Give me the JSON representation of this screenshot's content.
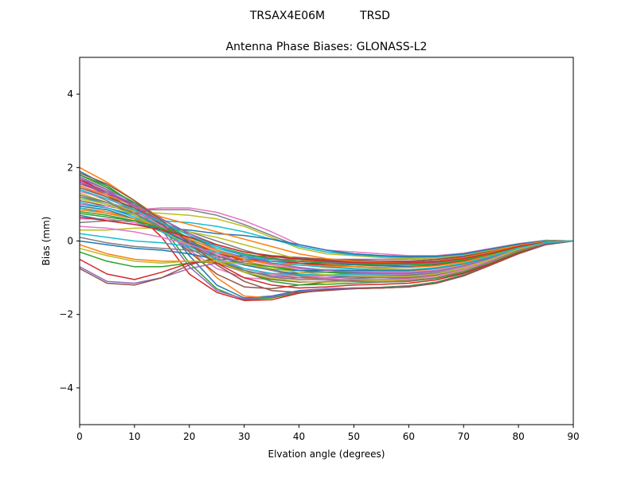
{
  "figure": {
    "suptitle_left": "TRSAX4E06M",
    "suptitle_right": "TRSD"
  },
  "chart_data": {
    "type": "line",
    "title": "Antenna Phase Biases: GLONASS-L2",
    "xlabel": "Elvation angle (degrees)",
    "ylabel": "Bias (mm)",
    "xlim": [
      0,
      90
    ],
    "ylim": [
      -5,
      5
    ],
    "x_ticks": [
      0,
      10,
      20,
      30,
      40,
      50,
      60,
      70,
      80,
      90
    ],
    "y_ticks": [
      -4,
      -2,
      0,
      2,
      4
    ],
    "grid": false,
    "legend": "none",
    "colors": [
      "#1f77b4",
      "#ff7f0e",
      "#2ca02c",
      "#d62728",
      "#9467bd",
      "#8c564b",
      "#e377c2",
      "#7f7f7f",
      "#bcbd22",
      "#17becf"
    ],
    "x": [
      0,
      5,
      10,
      15,
      20,
      25,
      30,
      35,
      40,
      45,
      50,
      55,
      60,
      65,
      70,
      75,
      80,
      85,
      90
    ],
    "series": [
      {
        "values": [
          1.9,
          1.5,
          1.0,
          0.5,
          -0.4,
          -1.2,
          -1.55,
          -1.5,
          -1.35,
          -1.3,
          -1.28,
          -1.28,
          -1.25,
          -1.15,
          -0.95,
          -0.65,
          -0.35,
          -0.1,
          0.0
        ]
      },
      {
        "values": [
          2.0,
          1.6,
          1.1,
          0.6,
          -0.2,
          -1.0,
          -1.5,
          -1.55,
          -1.4,
          -1.32,
          -1.3,
          -1.28,
          -1.25,
          -1.15,
          -0.95,
          -0.65,
          -0.35,
          -0.1,
          0.0
        ]
      },
      {
        "values": [
          1.8,
          1.5,
          1.0,
          0.4,
          -0.6,
          -1.3,
          -1.6,
          -1.55,
          -1.4,
          -1.3,
          -1.28,
          -1.26,
          -1.22,
          -1.12,
          -0.92,
          -0.62,
          -0.33,
          -0.1,
          0.0
        ]
      },
      {
        "values": [
          1.7,
          1.3,
          0.8,
          0.1,
          -0.9,
          -1.4,
          -1.62,
          -1.6,
          -1.42,
          -1.32,
          -1.3,
          -1.28,
          -1.25,
          -1.15,
          -0.95,
          -0.65,
          -0.35,
          -0.1,
          0.0
        ]
      },
      {
        "values": [
          1.75,
          1.4,
          0.9,
          0.3,
          -0.7,
          -1.35,
          -1.58,
          -1.52,
          -1.38,
          -1.3,
          -1.28,
          -1.27,
          -1.24,
          -1.14,
          -0.94,
          -0.64,
          -0.34,
          -0.1,
          0.0
        ]
      },
      {
        "values": [
          1.6,
          1.25,
          0.85,
          0.35,
          -0.3,
          -0.9,
          -1.25,
          -1.3,
          -1.2,
          -1.12,
          -1.1,
          -1.1,
          -1.08,
          -1.0,
          -0.85,
          -0.6,
          -0.3,
          -0.08,
          0.0
        ]
      },
      {
        "values": [
          1.5,
          1.2,
          0.8,
          0.3,
          -0.25,
          -0.75,
          -1.0,
          -1.05,
          -1.0,
          -0.95,
          -0.95,
          -0.95,
          -0.95,
          -0.9,
          -0.75,
          -0.5,
          -0.25,
          -0.05,
          0.0
        ]
      },
      {
        "values": [
          1.4,
          1.1,
          0.7,
          0.25,
          -0.2,
          -0.6,
          -0.85,
          -0.9,
          -0.85,
          -0.85,
          -0.85,
          -0.88,
          -0.88,
          -0.82,
          -0.7,
          -0.48,
          -0.22,
          -0.05,
          0.0
        ]
      },
      {
        "values": [
          1.3,
          1.05,
          0.75,
          0.35,
          0.0,
          -0.3,
          -0.5,
          -0.6,
          -0.65,
          -0.7,
          -0.75,
          -0.78,
          -0.78,
          -0.72,
          -0.6,
          -0.4,
          -0.18,
          -0.03,
          0.0
        ]
      },
      {
        "values": [
          1.2,
          1.0,
          0.75,
          0.4,
          0.1,
          -0.2,
          -0.4,
          -0.5,
          -0.55,
          -0.6,
          -0.62,
          -0.65,
          -0.65,
          -0.6,
          -0.5,
          -0.32,
          -0.14,
          -0.02,
          0.0
        ]
      },
      {
        "values": [
          1.0,
          0.9,
          0.7,
          0.35,
          0.05,
          -0.25,
          -0.45,
          -0.55,
          -0.6,
          -0.62,
          -0.65,
          -0.68,
          -0.7,
          -0.65,
          -0.55,
          -0.38,
          -0.18,
          -0.04,
          0.0
        ]
      },
      {
        "values": [
          0.9,
          0.8,
          0.6,
          0.3,
          0.0,
          -0.3,
          -0.55,
          -0.7,
          -0.75,
          -0.78,
          -0.8,
          -0.82,
          -0.82,
          -0.76,
          -0.64,
          -0.44,
          -0.2,
          -0.05,
          0.0
        ]
      },
      {
        "values": [
          0.8,
          0.7,
          0.55,
          0.25,
          -0.05,
          -0.35,
          -0.6,
          -0.75,
          -0.8,
          -0.85,
          -0.88,
          -0.9,
          -0.9,
          -0.83,
          -0.7,
          -0.48,
          -0.22,
          -0.05,
          0.0
        ]
      },
      {
        "values": [
          1.6,
          1.3,
          1.0,
          0.5,
          0.0,
          -0.35,
          -0.5,
          -0.55,
          -0.55,
          -0.55,
          -0.55,
          -0.55,
          -0.55,
          -0.5,
          -0.42,
          -0.3,
          -0.14,
          -0.03,
          0.0
        ]
      },
      {
        "values": [
          1.7,
          1.4,
          1.05,
          0.6,
          0.15,
          -0.25,
          -0.45,
          -0.5,
          -0.5,
          -0.5,
          -0.5,
          -0.5,
          -0.5,
          -0.46,
          -0.4,
          -0.28,
          -0.12,
          -0.02,
          0.0
        ]
      },
      {
        "values": [
          1.1,
          0.95,
          0.8,
          0.5,
          0.2,
          -0.1,
          -0.3,
          -0.4,
          -0.45,
          -0.5,
          -0.52,
          -0.55,
          -0.55,
          -0.5,
          -0.42,
          -0.28,
          -0.12,
          -0.02,
          0.0
        ]
      },
      {
        "values": [
          0.6,
          0.6,
          0.5,
          0.3,
          0.05,
          -0.25,
          -0.5,
          -0.65,
          -0.75,
          -0.8,
          -0.82,
          -0.85,
          -0.85,
          -0.8,
          -0.68,
          -0.46,
          -0.2,
          -0.04,
          0.0
        ]
      },
      {
        "values": [
          0.5,
          0.55,
          0.55,
          0.45,
          0.25,
          0.0,
          -0.25,
          -0.45,
          -0.6,
          -0.7,
          -0.75,
          -0.8,
          -0.8,
          -0.75,
          -0.62,
          -0.42,
          -0.18,
          -0.03,
          0.0
        ]
      },
      {
        "values": [
          0.3,
          0.3,
          0.35,
          0.35,
          0.25,
          0.1,
          -0.1,
          -0.3,
          -0.5,
          -0.62,
          -0.7,
          -0.75,
          -0.78,
          -0.72,
          -0.6,
          -0.4,
          -0.18,
          -0.03,
          0.0
        ]
      },
      {
        "values": [
          0.2,
          0.1,
          0.0,
          -0.05,
          -0.15,
          -0.3,
          -0.45,
          -0.6,
          -0.72,
          -0.8,
          -0.85,
          -0.88,
          -0.88,
          -0.82,
          -0.68,
          -0.46,
          -0.2,
          -0.04,
          0.0
        ]
      },
      {
        "values": [
          0.0,
          -0.1,
          -0.2,
          -0.25,
          -0.35,
          -0.5,
          -0.65,
          -0.8,
          -0.9,
          -0.95,
          -0.98,
          -1.0,
          -1.0,
          -0.92,
          -0.76,
          -0.5,
          -0.22,
          -0.04,
          0.0
        ]
      },
      {
        "values": [
          -0.1,
          -0.35,
          -0.5,
          -0.55,
          -0.55,
          -0.6,
          -0.75,
          -0.9,
          -1.0,
          -1.05,
          -1.08,
          -1.1,
          -1.1,
          -1.0,
          -0.82,
          -0.55,
          -0.25,
          -0.05,
          0.0
        ]
      },
      {
        "values": [
          -0.3,
          -0.55,
          -0.7,
          -0.7,
          -0.6,
          -0.55,
          -0.6,
          -0.7,
          -0.8,
          -0.85,
          -0.9,
          -0.92,
          -0.92,
          -0.85,
          -0.7,
          -0.47,
          -0.2,
          -0.04,
          0.0
        ]
      },
      {
        "values": [
          -0.5,
          -0.9,
          -1.05,
          -0.85,
          -0.6,
          -0.5,
          -0.5,
          -0.55,
          -0.6,
          -0.65,
          -0.7,
          -0.72,
          -0.72,
          -0.66,
          -0.55,
          -0.37,
          -0.16,
          -0.03,
          0.0
        ]
      },
      {
        "values": [
          -0.7,
          -1.1,
          -1.15,
          -1.0,
          -0.75,
          -0.6,
          -0.55,
          -0.55,
          -0.55,
          -0.58,
          -0.6,
          -0.62,
          -0.62,
          -0.58,
          -0.48,
          -0.32,
          -0.14,
          -0.02,
          0.0
        ]
      },
      {
        "values": [
          -0.75,
          -1.15,
          -1.2,
          -1.0,
          -0.65,
          -0.45,
          -0.4,
          -0.42,
          -0.48,
          -0.52,
          -0.55,
          -0.58,
          -0.58,
          -0.54,
          -0.45,
          -0.3,
          -0.13,
          -0.02,
          0.0
        ]
      },
      {
        "values": [
          1.0,
          0.95,
          0.85,
          0.9,
          0.9,
          0.78,
          0.55,
          0.25,
          -0.1,
          -0.25,
          -0.3,
          -0.35,
          -0.4,
          -0.4,
          -0.33,
          -0.2,
          -0.07,
          0.02,
          0.0
        ]
      },
      {
        "values": [
          1.2,
          1.05,
          0.85,
          0.85,
          0.85,
          0.7,
          0.45,
          0.15,
          -0.15,
          -0.3,
          -0.35,
          -0.4,
          -0.42,
          -0.42,
          -0.35,
          -0.22,
          -0.08,
          0.02,
          0.0
        ]
      },
      {
        "values": [
          1.3,
          1.05,
          0.8,
          0.75,
          0.7,
          0.6,
          0.4,
          0.1,
          -0.2,
          -0.35,
          -0.4,
          -0.45,
          -0.48,
          -0.46,
          -0.38,
          -0.24,
          -0.1,
          0.01,
          0.0
        ]
      },
      {
        "values": [
          0.9,
          0.75,
          0.6,
          0.55,
          0.5,
          0.4,
          0.25,
          0.05,
          -0.15,
          -0.3,
          -0.38,
          -0.42,
          -0.45,
          -0.43,
          -0.36,
          -0.22,
          -0.09,
          0.01,
          0.0
        ]
      },
      {
        "values": [
          0.7,
          0.55,
          0.45,
          0.35,
          0.3,
          0.2,
          0.15,
          0.05,
          -0.1,
          -0.25,
          -0.35,
          -0.4,
          -0.43,
          -0.42,
          -0.35,
          -0.22,
          -0.09,
          0.0,
          0.0
        ]
      },
      {
        "values": [
          1.5,
          1.25,
          0.95,
          0.65,
          0.45,
          0.25,
          0.05,
          -0.15,
          -0.35,
          -0.48,
          -0.55,
          -0.58,
          -0.6,
          -0.56,
          -0.46,
          -0.3,
          -0.12,
          -0.01,
          0.0
        ]
      },
      {
        "values": [
          1.8,
          1.45,
          1.05,
          0.55,
          0.05,
          -0.45,
          -0.85,
          -1.1,
          -1.2,
          -1.18,
          -1.15,
          -1.12,
          -1.1,
          -1.02,
          -0.86,
          -0.6,
          -0.3,
          -0.08,
          0.0
        ]
      },
      {
        "values": [
          1.65,
          1.35,
          0.95,
          0.45,
          -0.1,
          -0.6,
          -1.0,
          -1.2,
          -1.28,
          -1.25,
          -1.2,
          -1.18,
          -1.15,
          -1.06,
          -0.88,
          -0.62,
          -0.32,
          -0.08,
          0.0
        ]
      },
      {
        "values": [
          1.55,
          1.3,
          0.95,
          0.5,
          0.0,
          -0.45,
          -0.8,
          -0.95,
          -1.0,
          -1.0,
          -0.98,
          -0.96,
          -0.95,
          -0.88,
          -0.74,
          -0.52,
          -0.26,
          -0.06,
          0.0
        ]
      },
      {
        "values": [
          1.45,
          1.2,
          0.9,
          0.45,
          -0.05,
          -0.5,
          -0.85,
          -1.05,
          -1.12,
          -1.1,
          -1.08,
          -1.05,
          -1.02,
          -0.94,
          -0.79,
          -0.55,
          -0.27,
          -0.06,
          0.0
        ]
      },
      {
        "values": [
          1.35,
          1.15,
          0.85,
          0.4,
          -0.05,
          -0.45,
          -0.75,
          -0.9,
          -0.95,
          -0.95,
          -0.93,
          -0.92,
          -0.9,
          -0.84,
          -0.7,
          -0.49,
          -0.24,
          -0.05,
          0.0
        ]
      },
      {
        "values": [
          1.25,
          1.05,
          0.75,
          0.35,
          -0.1,
          -0.5,
          -0.8,
          -0.98,
          -1.05,
          -1.05,
          -1.02,
          -1.0,
          -0.98,
          -0.9,
          -0.75,
          -0.52,
          -0.25,
          -0.05,
          0.0
        ]
      },
      {
        "values": [
          1.15,
          1.0,
          0.7,
          0.3,
          -0.15,
          -0.55,
          -0.85,
          -1.02,
          -1.1,
          -1.12,
          -1.1,
          -1.08,
          -1.05,
          -0.96,
          -0.8,
          -0.56,
          -0.27,
          -0.06,
          0.0
        ]
      },
      {
        "values": [
          1.05,
          0.9,
          0.65,
          0.25,
          -0.15,
          -0.5,
          -0.75,
          -0.88,
          -0.92,
          -0.92,
          -0.9,
          -0.9,
          -0.88,
          -0.82,
          -0.68,
          -0.47,
          -0.22,
          -0.05,
          0.0
        ]
      },
      {
        "values": [
          0.95,
          0.85,
          0.6,
          0.3,
          -0.05,
          -0.4,
          -0.65,
          -0.78,
          -0.8,
          -0.8,
          -0.8,
          -0.8,
          -0.8,
          -0.74,
          -0.62,
          -0.43,
          -0.2,
          -0.04,
          0.0
        ]
      },
      {
        "values": [
          0.85,
          0.75,
          0.6,
          0.35,
          0.05,
          -0.25,
          -0.5,
          -0.62,
          -0.66,
          -0.68,
          -0.7,
          -0.72,
          -0.72,
          -0.68,
          -0.57,
          -0.39,
          -0.18,
          -0.03,
          0.0
        ]
      },
      {
        "values": [
          0.75,
          0.65,
          0.55,
          0.35,
          0.1,
          -0.15,
          -0.35,
          -0.48,
          -0.55,
          -0.6,
          -0.62,
          -0.65,
          -0.66,
          -0.62,
          -0.52,
          -0.36,
          -0.16,
          -0.03,
          0.0
        ]
      },
      {
        "values": [
          0.65,
          0.55,
          0.45,
          0.3,
          0.1,
          -0.1,
          -0.3,
          -0.42,
          -0.5,
          -0.55,
          -0.58,
          -0.6,
          -0.6,
          -0.57,
          -0.48,
          -0.33,
          -0.15,
          -0.03,
          0.0
        ]
      },
      {
        "values": [
          1.6,
          1.35,
          1.0,
          0.6,
          0.2,
          -0.15,
          -0.4,
          -0.6,
          -0.72,
          -0.8,
          -0.85,
          -0.88,
          -0.88,
          -0.82,
          -0.68,
          -0.46,
          -0.21,
          -0.04,
          0.0
        ]
      },
      {
        "values": [
          1.85,
          1.55,
          1.1,
          0.55,
          -0.05,
          -0.65,
          -1.1,
          -1.35,
          -1.4,
          -1.35,
          -1.3,
          -1.28,
          -1.25,
          -1.15,
          -0.95,
          -0.65,
          -0.34,
          -0.09,
          0.0
        ]
      },
      {
        "values": [
          0.4,
          0.35,
          0.25,
          0.1,
          -0.1,
          -0.35,
          -0.6,
          -0.8,
          -0.95,
          -1.02,
          -1.05,
          -1.05,
          -1.03,
          -0.95,
          -0.78,
          -0.53,
          -0.24,
          -0.05,
          0.0
        ]
      },
      {
        "values": [
          0.1,
          -0.05,
          -0.15,
          -0.2,
          -0.25,
          -0.4,
          -0.6,
          -0.8,
          -0.95,
          -1.05,
          -1.1,
          -1.12,
          -1.1,
          -1.0,
          -0.83,
          -0.56,
          -0.26,
          -0.06,
          0.0
        ]
      },
      {
        "values": [
          -0.2,
          -0.4,
          -0.55,
          -0.6,
          -0.55,
          -0.55,
          -0.62,
          -0.75,
          -0.85,
          -0.92,
          -0.95,
          -0.97,
          -0.97,
          -0.9,
          -0.74,
          -0.5,
          -0.22,
          -0.04,
          0.0
        ]
      },
      {
        "values": [
          1.4,
          1.15,
          0.85,
          0.5,
          0.15,
          -0.15,
          -0.38,
          -0.55,
          -0.65,
          -0.72,
          -0.76,
          -0.78,
          -0.78,
          -0.73,
          -0.61,
          -0.42,
          -0.19,
          -0.04,
          0.0
        ]
      }
    ]
  }
}
